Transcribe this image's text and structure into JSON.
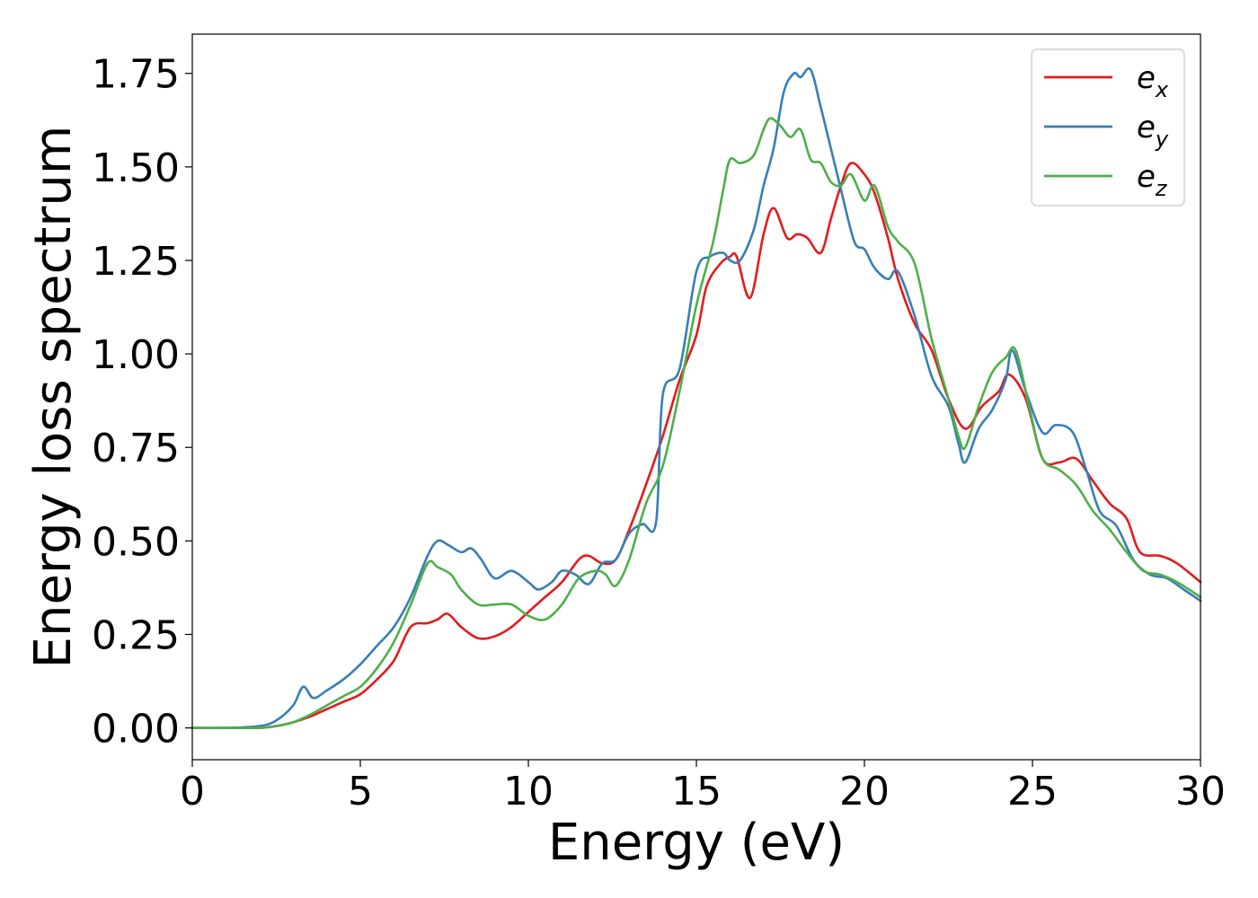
{
  "chart_data": {
    "type": "line",
    "xlabel": "Energy (eV)",
    "ylabel": "Energy loss spectrum",
    "xlim": [
      0,
      30
    ],
    "ylim": [
      -0.085,
      1.855
    ],
    "xticks": [
      0,
      5,
      10,
      15,
      20,
      25,
      30
    ],
    "xtick_labels": [
      "0",
      "5",
      "10",
      "15",
      "20",
      "25",
      "30"
    ],
    "yticks": [
      0.0,
      0.25,
      0.5,
      0.75,
      1.0,
      1.25,
      1.5,
      1.75
    ],
    "ytick_labels": [
      "0.00",
      "0.25",
      "0.50",
      "0.75",
      "1.00",
      "1.25",
      "1.50",
      "1.75"
    ],
    "grid": false,
    "legend_position": "top-right",
    "series": [
      {
        "name": "e",
        "subscript": "x",
        "color": "#e41a1c",
        "x": [
          0,
          1,
          2,
          2.5,
          3,
          3.5,
          4,
          4.5,
          5,
          5.5,
          6,
          6.5,
          7,
          7.3,
          7.6,
          8,
          8.5,
          9,
          9.5,
          10,
          10.5,
          11,
          11.5,
          11.8,
          12.2,
          12.6,
          13,
          13.5,
          14,
          14.5,
          15,
          15.3,
          15.7,
          16,
          16.2,
          16.6,
          17,
          17.3,
          17.7,
          18,
          18.3,
          18.7,
          19,
          19.3,
          19.6,
          20,
          20.3,
          20.7,
          21,
          21.5,
          22,
          22.5,
          23,
          23.5,
          24,
          24.3,
          24.8,
          25.3,
          25.8,
          26.3,
          26.8,
          27.3,
          27.8,
          28.2,
          28.8,
          29.3,
          30
        ],
        "y": [
          0,
          0,
          0,
          0.005,
          0.015,
          0.03,
          0.05,
          0.07,
          0.09,
          0.13,
          0.18,
          0.27,
          0.28,
          0.29,
          0.305,
          0.27,
          0.24,
          0.245,
          0.27,
          0.31,
          0.35,
          0.39,
          0.45,
          0.46,
          0.44,
          0.45,
          0.53,
          0.65,
          0.78,
          0.93,
          1.05,
          1.18,
          1.24,
          1.26,
          1.26,
          1.15,
          1.32,
          1.39,
          1.31,
          1.32,
          1.31,
          1.27,
          1.36,
          1.45,
          1.51,
          1.48,
          1.43,
          1.31,
          1.2,
          1.08,
          1.01,
          0.88,
          0.8,
          0.86,
          0.9,
          0.945,
          0.88,
          0.72,
          0.71,
          0.72,
          0.66,
          0.6,
          0.56,
          0.47,
          0.46,
          0.44,
          0.39
        ]
      },
      {
        "name": "e",
        "subscript": "y",
        "color": "#377eb8",
        "x": [
          0,
          1,
          2,
          2.5,
          3,
          3.3,
          3.6,
          4,
          4.5,
          5,
          5.5,
          6,
          6.5,
          7,
          7.3,
          7.6,
          8,
          8.3,
          8.6,
          9,
          9.5,
          10,
          10.3,
          10.7,
          11,
          11.4,
          11.8,
          12.2,
          12.6,
          13,
          13.4,
          13.8,
          14,
          14.5,
          15,
          15.4,
          15.8,
          16,
          16.3,
          16.7,
          17,
          17.3,
          17.6,
          17.9,
          18.1,
          18.4,
          18.7,
          19,
          19.3,
          19.7,
          20,
          20.3,
          20.7,
          21,
          21.5,
          22,
          22.5,
          22.8,
          23,
          23.4,
          23.8,
          24.2,
          24.4,
          24.8,
          25.3,
          25.7,
          26.2,
          26.6,
          27,
          27.5,
          28,
          28.5,
          29,
          29.5,
          30
        ],
        "y": [
          0,
          0,
          0.005,
          0.02,
          0.06,
          0.11,
          0.08,
          0.1,
          0.13,
          0.17,
          0.22,
          0.27,
          0.35,
          0.46,
          0.5,
          0.49,
          0.47,
          0.48,
          0.45,
          0.4,
          0.42,
          0.39,
          0.37,
          0.39,
          0.42,
          0.41,
          0.385,
          0.44,
          0.45,
          0.52,
          0.545,
          0.55,
          0.89,
          0.96,
          1.22,
          1.26,
          1.27,
          1.25,
          1.25,
          1.33,
          1.45,
          1.55,
          1.7,
          1.75,
          1.74,
          1.76,
          1.66,
          1.55,
          1.44,
          1.3,
          1.28,
          1.23,
          1.2,
          1.22,
          1.1,
          0.94,
          0.86,
          0.76,
          0.71,
          0.8,
          0.85,
          0.93,
          1.01,
          0.9,
          0.79,
          0.81,
          0.79,
          0.69,
          0.58,
          0.54,
          0.45,
          0.41,
          0.4,
          0.37,
          0.34
        ]
      },
      {
        "name": "e",
        "subscript": "z",
        "color": "#4daf4a",
        "x": [
          0,
          1,
          2,
          2.5,
          3,
          3.5,
          4,
          4.5,
          5,
          5.5,
          6,
          6.5,
          7,
          7.3,
          7.7,
          8,
          8.5,
          9,
          9.5,
          10,
          10.5,
          11,
          11.5,
          12,
          12.3,
          12.6,
          13,
          13.5,
          14,
          14.5,
          15,
          15.5,
          15.8,
          16,
          16.3,
          16.7,
          17,
          17.2,
          17.5,
          17.8,
          18.1,
          18.4,
          18.7,
          19,
          19.3,
          19.6,
          20,
          20.3,
          20.7,
          21,
          21.5,
          22,
          22.5,
          22.8,
          23,
          23.4,
          23.8,
          24.2,
          24.5,
          24.9,
          25.3,
          25.8,
          26.3,
          26.8,
          27.3,
          27.8,
          28.3,
          28.8,
          29.3,
          30
        ],
        "y": [
          0,
          0,
          0,
          0.005,
          0.015,
          0.035,
          0.06,
          0.085,
          0.11,
          0.16,
          0.23,
          0.33,
          0.44,
          0.43,
          0.41,
          0.37,
          0.33,
          0.33,
          0.33,
          0.3,
          0.29,
          0.33,
          0.4,
          0.42,
          0.41,
          0.38,
          0.45,
          0.6,
          0.7,
          0.9,
          1.13,
          1.3,
          1.44,
          1.52,
          1.51,
          1.53,
          1.6,
          1.63,
          1.61,
          1.58,
          1.6,
          1.52,
          1.51,
          1.46,
          1.45,
          1.48,
          1.41,
          1.45,
          1.34,
          1.3,
          1.24,
          1.04,
          0.88,
          0.78,
          0.75,
          0.86,
          0.95,
          0.99,
          1.01,
          0.86,
          0.72,
          0.69,
          0.65,
          0.58,
          0.53,
          0.47,
          0.42,
          0.41,
          0.39,
          0.35
        ]
      }
    ]
  }
}
